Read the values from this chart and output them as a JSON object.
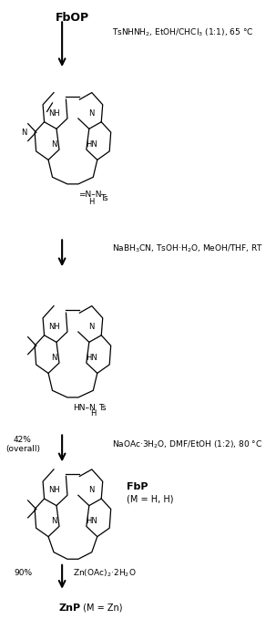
{
  "title": "FbOP",
  "step1_reagent": "TsNHNH$_2$, EtOH/CHCl$_3$ (1:1), 65 °C",
  "step2_reagent": "NaBH$_3$CN, TsOH·H$_2$O, MeOH/THF, RT",
  "step3_yield": "42%\n(overall)",
  "step3_reagent": "NaOAc·3H$_2$O, DMF/EtOH (1:2), 80 °C",
  "step4_yield": "90%",
  "step4_reagent": "Zn(OAc)$_2$·2H$_2$O",
  "fbp_label": "FbP",
  "fbp_sublabel": "(M = H, H)",
  "znp_label": "ZnP",
  "znp_sublabel": "(M = Zn)",
  "bg_color": "#ffffff",
  "text_color": "#000000"
}
